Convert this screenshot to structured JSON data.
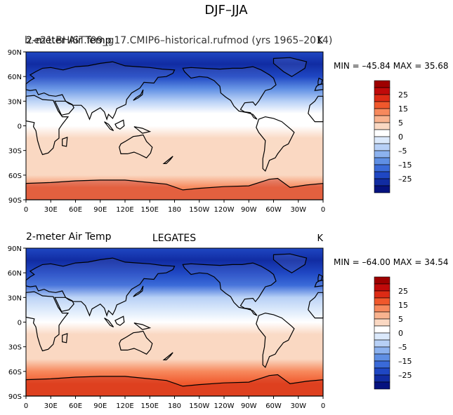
{
  "figure": {
    "title": "DJF–JJA"
  },
  "panels": [
    {
      "id": "model",
      "overlay_label": "2-meter Air Temp",
      "caption": "b.e21.BHIST.f09_g17.CMIP6–historical.rufmod (yrs 1965–2014)",
      "units": "K",
      "stats": "MIN = –45.84  MAX =  35.68",
      "min": -45.84,
      "max": 35.68,
      "center_label": ""
    },
    {
      "id": "obs",
      "overlay_label": "2-meter Air Temp",
      "caption": "",
      "units": "K",
      "stats": "MIN = –64.00  MAX =  34.54",
      "min": -64.0,
      "max": 34.54,
      "center_label": "LEGATES"
    }
  ],
  "axes": {
    "lat_ticks": [
      "90N",
      "60N",
      "30N",
      "0",
      "30S",
      "60S",
      "90S"
    ],
    "lon_ticks": [
      "0",
      "30E",
      "60E",
      "90E",
      "120E",
      "150E",
      "180",
      "150W",
      "120W",
      "90W",
      "60W",
      "30W",
      "0"
    ]
  },
  "colorbar": {
    "labels": [
      "25",
      "15",
      "5",
      "0",
      "–5",
      "–15",
      "–25"
    ],
    "colors": [
      "#9e0000",
      "#c00a0a",
      "#dd2b15",
      "#f0582c",
      "#f7895d",
      "#f9b38f",
      "#fad8c2",
      "#ffffff",
      "#dbe9fb",
      "#b7d0f6",
      "#8cb2ef",
      "#5f8fe4",
      "#3a6ad8",
      "#1f47c3",
      "#112ca2",
      "#05127f"
    ]
  },
  "chart_data": [
    {
      "type": "heatmap",
      "title": "b.e21.BHIST.f09_g17.CMIP6–historical.rufmod (yrs 1965–2014)",
      "variable": "2-meter Air Temp",
      "units": "K",
      "xlim": [
        0,
        360
      ],
      "ylim": [
        -90,
        90
      ],
      "value_range": [
        -45.84,
        35.68
      ],
      "contour_levels": [
        -35,
        -30,
        -25,
        -20,
        -15,
        -10,
        -5,
        0,
        5,
        10,
        15,
        20,
        25,
        30,
        35
      ],
      "zonal_profile": {
        "lat": [
          90,
          75,
          60,
          45,
          30,
          15,
          0,
          -15,
          -30,
          -45,
          -60,
          -75,
          -90
        ],
        "value": [
          -28,
          -33,
          -30,
          -22,
          -11,
          -2,
          2,
          5,
          7,
          5,
          6,
          17,
          14
        ]
      }
    },
    {
      "type": "heatmap",
      "title": "LEGATES",
      "variable": "2-meter Air Temp",
      "units": "K",
      "xlim": [
        0,
        360
      ],
      "ylim": [
        -90,
        90
      ],
      "value_range": [
        -64.0,
        34.54
      ],
      "contour_levels": [
        -35,
        -30,
        -25,
        -20,
        -15,
        -10,
        -5,
        0,
        5,
        10,
        15,
        20,
        25,
        30,
        35
      ],
      "zonal_profile": {
        "lat": [
          90,
          75,
          60,
          45,
          30,
          15,
          0,
          -15,
          -30,
          -45,
          -60,
          -75,
          -90
        ],
        "value": [
          -28,
          -36,
          -32,
          -23,
          -12,
          -3,
          1,
          4,
          6,
          6,
          14,
          22,
          20
        ]
      }
    }
  ]
}
